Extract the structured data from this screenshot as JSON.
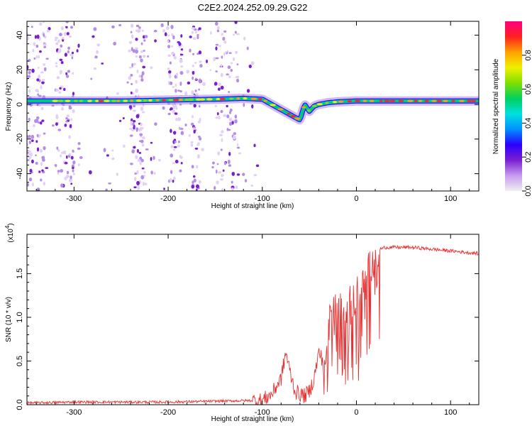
{
  "title": "C2E2.2024.252.09.29.G22",
  "chart_data": [
    {
      "type": "heatmap",
      "xlabel": "Height of straight line (km)",
      "ylabel": "Frequency (Hz)",
      "xlim": [
        -350,
        130
      ],
      "ylim": [
        -50,
        48
      ],
      "xticks": [
        -300,
        -200,
        -100,
        0,
        100
      ],
      "yticks": [
        -40,
        -20,
        0,
        20,
        40
      ],
      "colorbar": {
        "label": "Normalized spectral amplitude",
        "range": [
          0,
          1
        ],
        "ticks": [
          "0.0",
          "0.2",
          "0.4",
          "0.6",
          "0.8"
        ],
        "colors": [
          "#f0f0f0",
          "#c89bf0",
          "#7a1fd0",
          "#2a00ff",
          "#0090ff",
          "#00e0e0",
          "#00d060",
          "#80e000",
          "#f0f000",
          "#ffa000",
          "#ff2020",
          "#ff0080"
        ]
      },
      "ridge": {
        "x": [
          -350,
          -300,
          -250,
          -200,
          -150,
          -120,
          -100,
          -90,
          -80,
          -70,
          -60,
          -55,
          -50,
          -45,
          -40,
          -30,
          -20,
          0,
          50,
          100,
          130
        ],
        "y": [
          2,
          2,
          2,
          2.5,
          3,
          3.5,
          3,
          0,
          -3,
          -6,
          -9,
          0,
          -4,
          -1,
          0,
          1,
          1.5,
          2,
          2,
          2,
          2
        ]
      },
      "noise_region_x": [
        -350,
        -120
      ]
    },
    {
      "type": "line",
      "xlabel": "Height of straight line (km)",
      "ylabel": "SNR (10 * v/v)",
      "multiplier": "(x10",
      "multiplier_exp": "4",
      "xlim": [
        -350,
        130
      ],
      "ylim": [
        0,
        1.95
      ],
      "xticks": [
        -300,
        -200,
        -100,
        0,
        100
      ],
      "yticks": [
        "0.0",
        "0.5",
        "1.0",
        "1.5"
      ],
      "color": "#e83030",
      "series": [
        {
          "x": [
            -350,
            -300,
            -250,
            -200,
            -150,
            -100,
            -90,
            -80,
            -75,
            -70,
            -65,
            -60,
            -55,
            -50,
            -45,
            -40,
            -35,
            -30,
            -25,
            -20,
            -15,
            -10,
            -5,
            0,
            5,
            10,
            15,
            20,
            25,
            30,
            40,
            60,
            80,
            100,
            110,
            120,
            130
          ],
          "values": [
            0.02,
            0.03,
            0.03,
            0.03,
            0.04,
            0.05,
            0.12,
            0.3,
            0.6,
            0.35,
            0.15,
            0.12,
            0.1,
            0.15,
            0.3,
            0.6,
            0.5,
            1.0,
            1.05,
            1.05,
            1.15,
            1.2,
            1.15,
            1.25,
            1.3,
            1.4,
            1.6,
            1.72,
            1.78,
            1.8,
            1.8,
            1.8,
            1.78,
            1.76,
            1.75,
            1.74,
            1.73
          ]
        }
      ]
    }
  ]
}
